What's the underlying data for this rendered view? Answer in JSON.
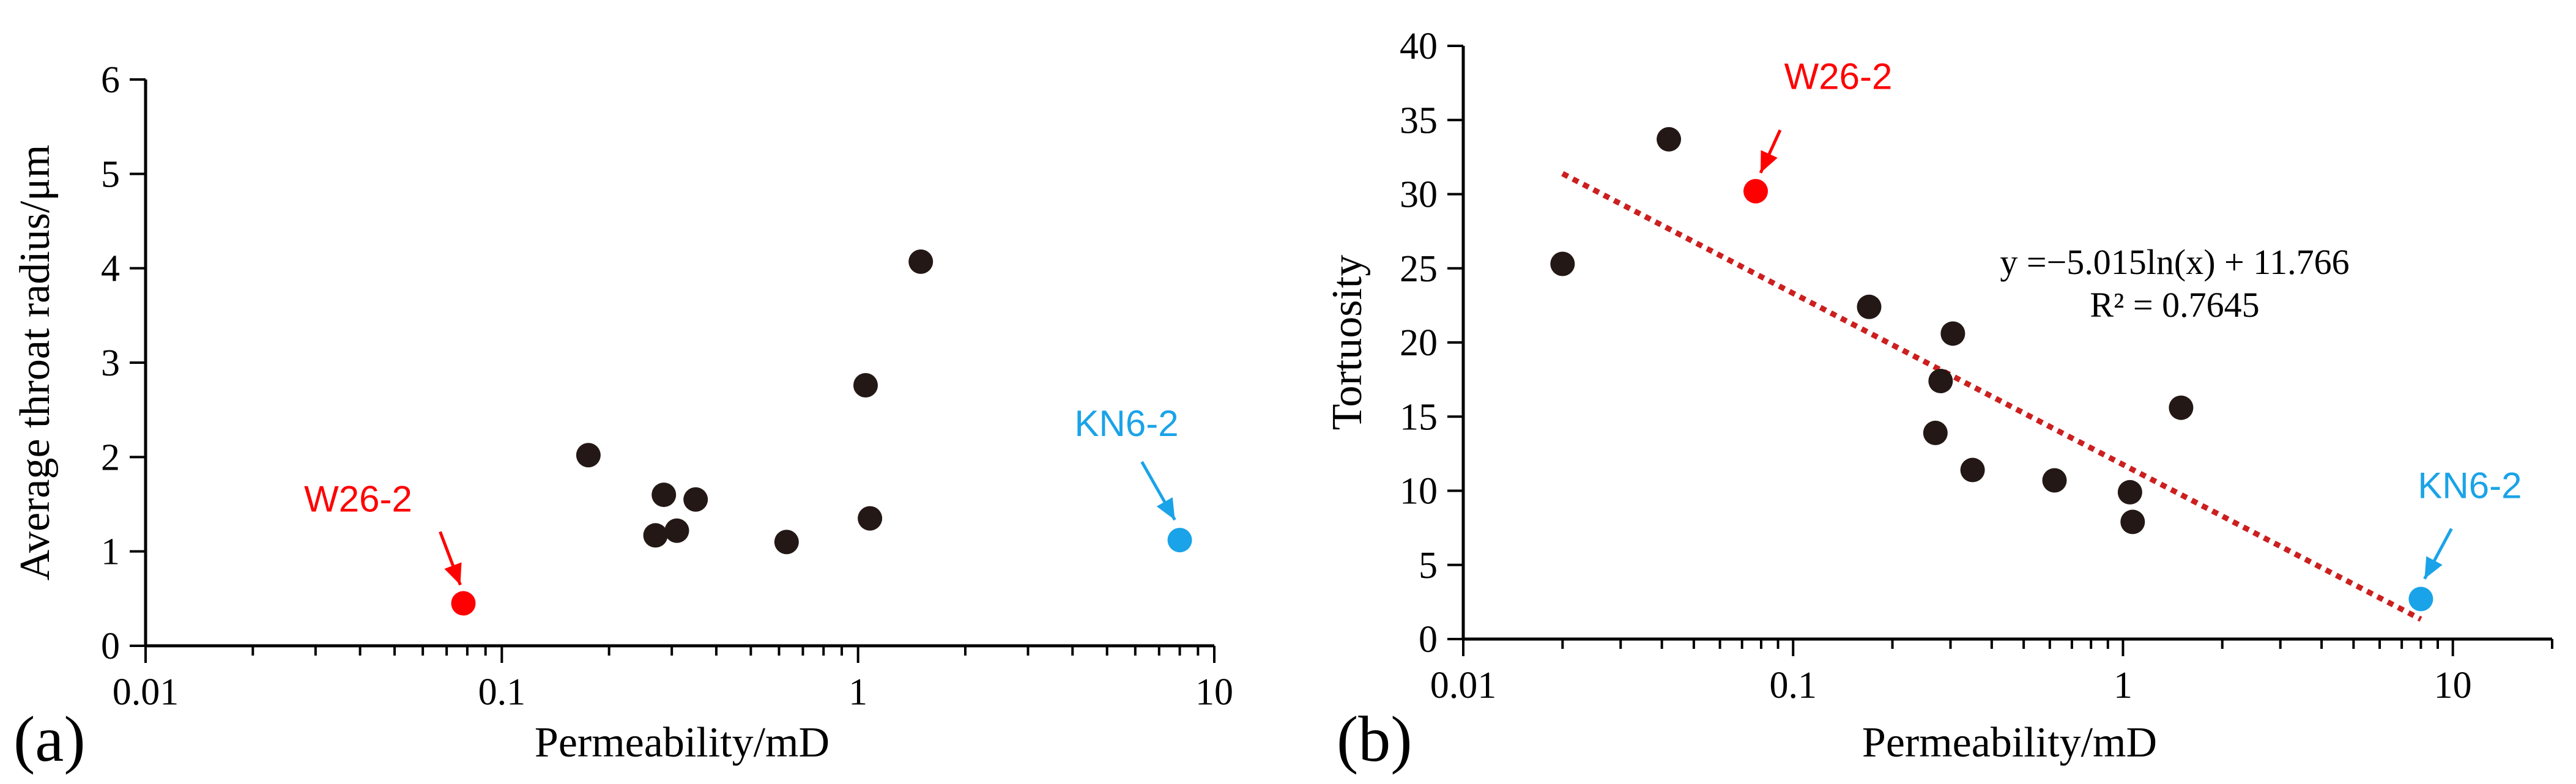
{
  "chart_data": [
    {
      "type": "scatter",
      "panel_label": "(a)",
      "xlabel": "Permeability/mD",
      "ylabel": "Average throat radius/μm",
      "xscale": "log",
      "xlim": [
        0.01,
        10
      ],
      "ylim": [
        0,
        6
      ],
      "xticks": [
        0.01,
        0.1,
        1,
        10
      ],
      "xtick_labels": [
        "0.01",
        "0.1",
        "1",
        "10"
      ],
      "yticks": [
        0,
        1,
        2,
        3,
        4,
        5,
        6
      ],
      "ytick_labels": [
        "0",
        "1",
        "2",
        "3",
        "4",
        "5",
        "6"
      ],
      "grid": false,
      "points": [
        {
          "x": 0.175,
          "y": 2.02
        },
        {
          "x": 0.27,
          "y": 1.17
        },
        {
          "x": 0.285,
          "y": 1.6
        },
        {
          "x": 0.31,
          "y": 1.22
        },
        {
          "x": 0.35,
          "y": 1.55
        },
        {
          "x": 0.63,
          "y": 1.1
        },
        {
          "x": 1.05,
          "y": 2.76
        },
        {
          "x": 1.08,
          "y": 1.35
        },
        {
          "x": 1.5,
          "y": 4.07
        }
      ],
      "highlights": [
        {
          "label": "W26-2",
          "x": 0.078,
          "y": 0.45,
          "color": "#ff0000"
        },
        {
          "label": "KN6-2",
          "x": 8.0,
          "y": 1.12,
          "color": "#1aa3e8"
        }
      ],
      "point_color": "#231815"
    },
    {
      "type": "scatter",
      "panel_label": "(b)",
      "xlabel": "Permeability/mD",
      "ylabel": "Tortuosity",
      "xscale": "log",
      "xlim": [
        0.01,
        20
      ],
      "ylim": [
        0,
        40
      ],
      "xticks": [
        0.01,
        0.1,
        1,
        10
      ],
      "xtick_labels": [
        "0.01",
        "0.1",
        "1",
        "10"
      ],
      "yticks": [
        0,
        5,
        10,
        15,
        20,
        25,
        30,
        35,
        40
      ],
      "ytick_labels": [
        "0",
        "5",
        "10",
        "15",
        "20",
        "25",
        "30",
        "35",
        "40"
      ],
      "grid": false,
      "points": [
        {
          "x": 0.02,
          "y": 25.3
        },
        {
          "x": 0.042,
          "y": 33.7
        },
        {
          "x": 0.17,
          "y": 22.4
        },
        {
          "x": 0.27,
          "y": 13.9
        },
        {
          "x": 0.28,
          "y": 17.4
        },
        {
          "x": 0.305,
          "y": 20.6
        },
        {
          "x": 0.35,
          "y": 11.4
        },
        {
          "x": 0.62,
          "y": 10.7
        },
        {
          "x": 1.05,
          "y": 9.9
        },
        {
          "x": 1.07,
          "y": 7.9
        },
        {
          "x": 1.5,
          "y": 15.6
        }
      ],
      "highlights": [
        {
          "label": "W26-2",
          "x": 0.077,
          "y": 30.2,
          "color": "#ff0000"
        },
        {
          "label": "KN6-2",
          "x": 8.0,
          "y": 2.7,
          "color": "#1aa3e8"
        }
      ],
      "point_color": "#231815",
      "trendline": {
        "type": "log",
        "slope": -5.015,
        "intercept": 11.766,
        "x_range": [
          0.02,
          8.0
        ],
        "color": "#cc1f1f",
        "equation": "y =−5.015ln(x) + 11.766",
        "r2": "R² = 0.7645"
      }
    }
  ]
}
